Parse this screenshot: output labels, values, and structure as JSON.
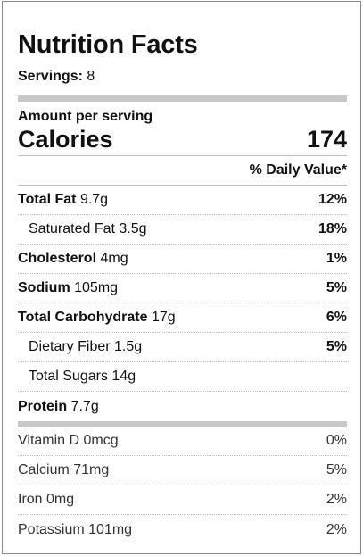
{
  "title": "Nutrition Facts",
  "servings": {
    "label": "Servings:",
    "value": "8"
  },
  "amount_per_serving": "Amount per serving",
  "calories": {
    "label": "Calories",
    "value": "174"
  },
  "daily_value_header": "% Daily Value*",
  "nutrients": [
    {
      "name": "Total Fat",
      "amount": "9.7g",
      "pct": "12%",
      "bold": true,
      "indent": false
    },
    {
      "name": "Saturated Fat",
      "amount": "3.5g",
      "pct": "18%",
      "bold": false,
      "indent": true
    },
    {
      "name": "Cholesterol",
      "amount": "4mg",
      "pct": "1%",
      "bold": true,
      "indent": false
    },
    {
      "name": "Sodium",
      "amount": "105mg",
      "pct": "5%",
      "bold": true,
      "indent": false
    },
    {
      "name": "Total Carbohydrate",
      "amount": "17g",
      "pct": "6%",
      "bold": true,
      "indent": false
    },
    {
      "name": "Dietary Fiber",
      "amount": "1.5g",
      "pct": "5%",
      "bold": false,
      "indent": true
    },
    {
      "name": "Total Sugars",
      "amount": "14g",
      "pct": "",
      "bold": false,
      "indent": true
    },
    {
      "name": "Protein",
      "amount": "7.7g",
      "pct": "",
      "bold": true,
      "indent": false
    }
  ],
  "vitamins": [
    {
      "name": "Vitamin D",
      "amount": "0mcg",
      "pct": "0%"
    },
    {
      "name": "Calcium",
      "amount": "71mg",
      "pct": "5%"
    },
    {
      "name": "Iron",
      "amount": "0mg",
      "pct": "2%"
    },
    {
      "name": "Potassium",
      "amount": "101mg",
      "pct": "2%"
    }
  ]
}
